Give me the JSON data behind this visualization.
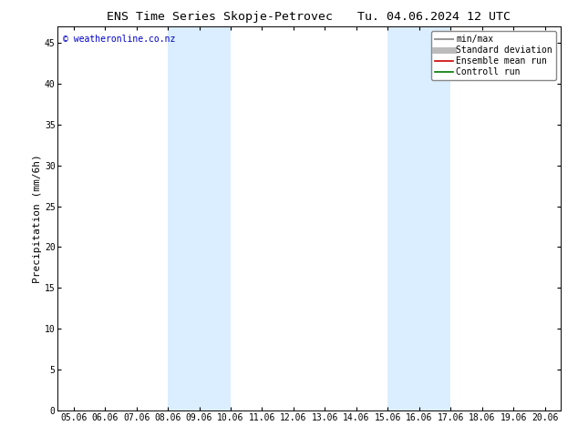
{
  "title": "ENS Time Series Skopje-Petrovec",
  "title_right": "Tu. 04.06.2024 12 UTC",
  "ylabel": "Precipitation (mm/6h)",
  "xlabel_ticks": [
    "05.06",
    "06.06",
    "07.06",
    "08.06",
    "09.06",
    "10.06",
    "11.06",
    "12.06",
    "13.06",
    "14.06",
    "15.06",
    "16.06",
    "17.06",
    "18.06",
    "19.06",
    "20.06"
  ],
  "yticks": [
    0,
    5,
    10,
    15,
    20,
    25,
    30,
    35,
    40,
    45
  ],
  "ylim": [
    0,
    47
  ],
  "xlim": [
    -0.5,
    15.5
  ],
  "shaded_bands": [
    {
      "xstart": 3,
      "xend": 5,
      "color": "#dbeeff"
    },
    {
      "xstart": 10,
      "xend": 12,
      "color": "#dbeeff"
    }
  ],
  "watermark": "© weatheronline.co.nz",
  "watermark_color": "#0000cc",
  "legend_items": [
    {
      "label": "min/max",
      "color": "#999999",
      "lw": 1.5,
      "style": "solid"
    },
    {
      "label": "Standard deviation",
      "color": "#bbbbbb",
      "lw": 5,
      "style": "solid"
    },
    {
      "label": "Ensemble mean run",
      "color": "#cc0000",
      "lw": 1.2,
      "style": "solid"
    },
    {
      "label": "Controll run",
      "color": "#007700",
      "lw": 1.2,
      "style": "solid"
    }
  ],
  "bg_color": "#ffffff",
  "plot_bg_color": "#ffffff",
  "title_fontsize": 9.5,
  "tick_label_fontsize": 7,
  "axis_label_fontsize": 8,
  "watermark_fontsize": 7,
  "legend_fontsize": 7
}
